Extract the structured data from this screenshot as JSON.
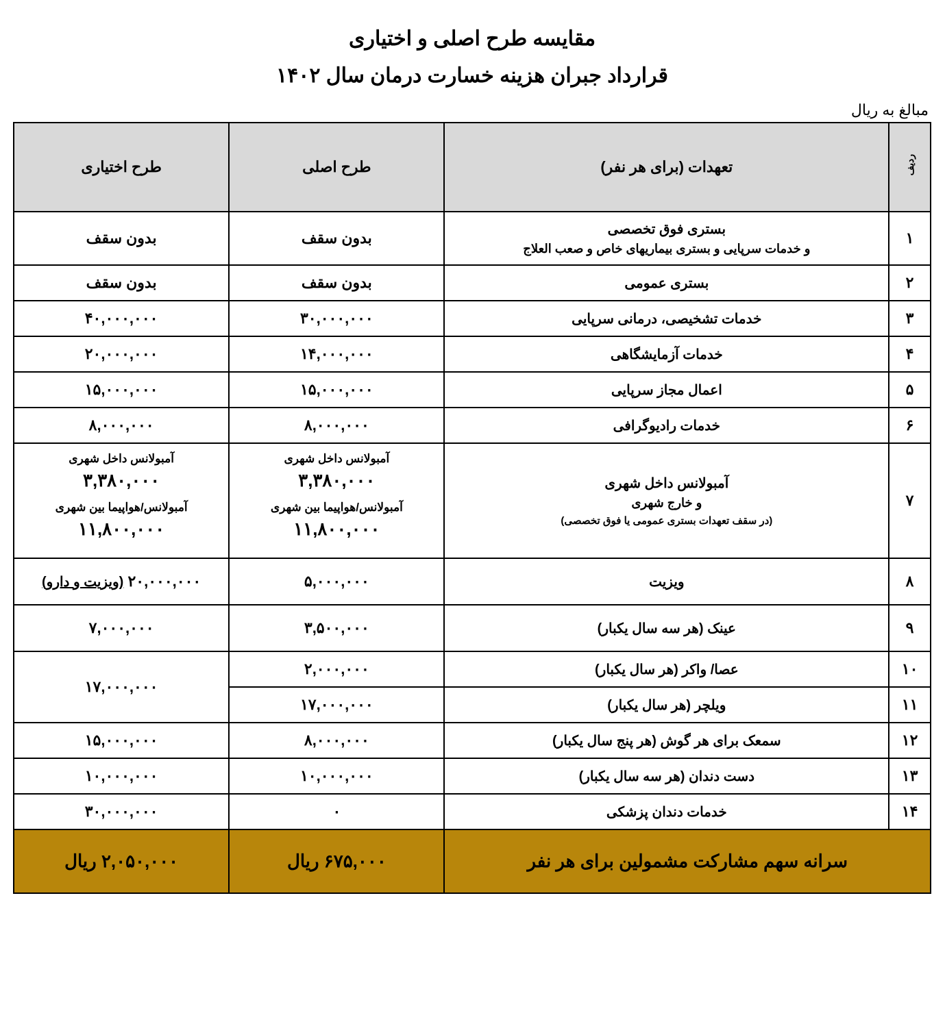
{
  "document": {
    "title_line1": "مقایسه طرح اصلی و اختیاری",
    "title_line2": "قرارداد جبران هزینه خسارت درمان  سال ۱۴۰۲",
    "currency_note": "مبالغ به ریال"
  },
  "colors": {
    "header_bg": "#d9d9d9",
    "footer_bg": "#b8860b",
    "border": "#000000",
    "text": "#000000",
    "page_bg": "#ffffff"
  },
  "columns": {
    "idx_header": "ردیف",
    "desc_header": "تعهدات (برای هر نفر)",
    "main_header": "طرح اصلی",
    "opt_header": "طرح اختیاری"
  },
  "rows": {
    "r1": {
      "idx": "۱",
      "desc_line1": "بستری فوق تخصصی",
      "desc_line2": "و خدمات سرپایی و بستری بیماریهای خاص و صعب العلاج",
      "main": "بدون سقف",
      "opt": "بدون سقف"
    },
    "r2": {
      "idx": "۲",
      "desc": "بستری عمومی",
      "main": "بدون سقف",
      "opt": "بدون سقف"
    },
    "r3": {
      "idx": "۳",
      "desc": "خدمات تشخیصی، درمانی سرپایی",
      "main": "۳۰,۰۰۰,۰۰۰",
      "opt": "۴۰,۰۰۰,۰۰۰"
    },
    "r4": {
      "idx": "۴",
      "desc": "خدمات آزمایشگاهی",
      "main": "۱۴,۰۰۰,۰۰۰",
      "opt": "۲۰,۰۰۰,۰۰۰"
    },
    "r5": {
      "idx": "۵",
      "desc": "اعمال مجاز سرپایی",
      "main": "۱۵,۰۰۰,۰۰۰",
      "opt": "۱۵,۰۰۰,۰۰۰"
    },
    "r6": {
      "idx": "۶",
      "desc": "خدمات رادیوگرافی",
      "main": "۸,۰۰۰,۰۰۰",
      "opt": "۸,۰۰۰,۰۰۰"
    },
    "r7": {
      "idx": "۷",
      "desc_line1": "آمبولانس  داخل شهری",
      "desc_line2": "و خارج شهری",
      "desc_line3": "(در سقف تعهدات بستری عمومی یا فوق تخصصی)",
      "amb_intra_label": "آمبولانس  داخل شهری",
      "amb_intra_main": "۳,۳۸۰,۰۰۰",
      "amb_intra_opt": "۳,۳۸۰,۰۰۰",
      "amb_inter_label": "آمبولانس/هواپیما بین شهری",
      "amb_inter_main": "۱۱,۸۰۰,۰۰۰",
      "amb_inter_opt": "۱۱,۸۰۰,۰۰۰"
    },
    "r8": {
      "idx": "۸",
      "desc": "ویزیت",
      "main": "۵,۰۰۰,۰۰۰",
      "opt_num": "۲۰,۰۰۰,۰۰۰",
      "opt_note": "(ویزیت و دارو)"
    },
    "r9": {
      "idx": "۹",
      "desc": "عینک (هر سه سال یکبار)",
      "main": "۳,۵۰۰,۰۰۰",
      "opt": "۷,۰۰۰,۰۰۰"
    },
    "r10": {
      "idx": "۱۰",
      "desc": "عصا/ واکر (هر سال یکبار)",
      "main": "۲,۰۰۰,۰۰۰",
      "opt_merged": "۱۷,۰۰۰,۰۰۰"
    },
    "r11": {
      "idx": "۱۱",
      "desc": "ویلچر  (هر سال یکبار)",
      "main": "۱۷,۰۰۰,۰۰۰"
    },
    "r12": {
      "idx": "۱۲",
      "desc": "سمعک برای هر گوش (هر پنج سال یکبار)",
      "main": "۸,۰۰۰,۰۰۰",
      "opt": "۱۵,۰۰۰,۰۰۰"
    },
    "r13": {
      "idx": "۱۳",
      "desc": "دست دندان (هر سه سال یکبار)",
      "main": "۱۰,۰۰۰,۰۰۰",
      "opt": "۱۰,۰۰۰,۰۰۰"
    },
    "r14": {
      "idx": "۱۴",
      "desc": "خدمات دندان پزشکی",
      "main": "۰",
      "opt": "۳۰,۰۰۰,۰۰۰"
    }
  },
  "footer": {
    "desc": "سرانه سهم مشارکت مشمولین برای هر نفر",
    "main": "۶۷۵,۰۰۰ ریال",
    "opt": "۲,۰۵۰,۰۰۰ ریال"
  }
}
